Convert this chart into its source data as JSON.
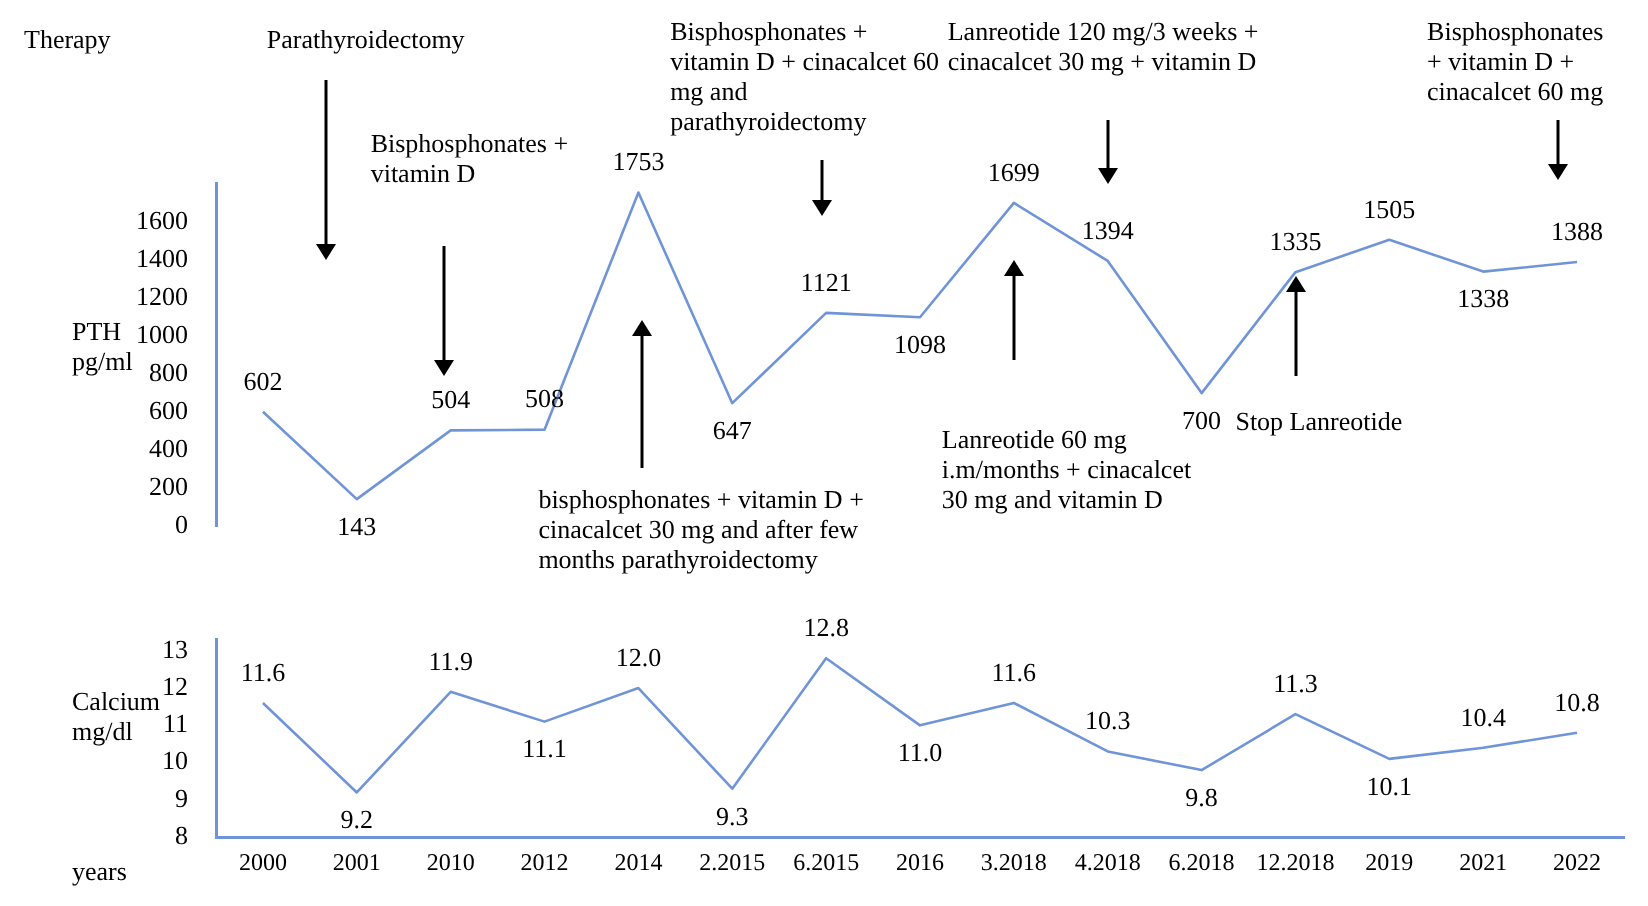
{
  "chart_data": [
    {
      "type": "line",
      "ylabel": "PTH pg/ml",
      "color": "#7094d8",
      "categories": [
        "2000",
        "2001",
        "2010",
        "2012",
        "2014",
        "2.2015",
        "6.2015",
        "2016",
        "3.2018",
        "4.2018",
        "6.2018",
        "12.2018",
        "2019",
        "2021",
        "2022"
      ],
      "values": [
        602,
        143,
        504,
        508,
        1753,
        647,
        1121,
        1098,
        1699,
        1394,
        700,
        1335,
        1505,
        1338,
        1388
      ],
      "ylim": [
        0,
        1800
      ],
      "yticks": [
        0,
        200,
        400,
        600,
        800,
        1000,
        1200,
        1400,
        1600
      ],
      "data_labels": true,
      "tick_labels": "y",
      "annotations": [
        "Therapy",
        "Parathyroidectomy",
        "Bisphosphonates + vitamin D",
        "bisphosphonates + vitamin D + cinacalcet 30 mg and after few months parathyroidectomy",
        "Bisphosphonates + vitamin D + cinacalcet 60 mg and parathyroidectomy",
        "Lanreotide 60 mg i.m/months + cinacalcet 30 mg and vitamin D",
        "Lanreotide 120 mg/3 weeks + cinacalcet 30 mg + vitamin D",
        "Stop Lanreotide",
        "Bisphosphonates + vitamin D + cinacalcet 60 mg"
      ]
    },
    {
      "type": "line",
      "ylabel": "Calcium mg/dl",
      "xlabel": "years",
      "color": "#7094d8",
      "categories": [
        "2000",
        "2001",
        "2010",
        "2012",
        "2014",
        "2.2015",
        "6.2015",
        "2016",
        "3.2018",
        "4.2018",
        "6.2018",
        "12.2018",
        "2019",
        "2021",
        "2022"
      ],
      "values": [
        11.6,
        9.2,
        11.9,
        11.1,
        12.0,
        9.3,
        12.8,
        11.0,
        11.6,
        10.3,
        9.8,
        11.3,
        10.1,
        10.4,
        10.8
      ],
      "value_labels": [
        "11.6",
        "9.2",
        "11.9",
        "11.1",
        "12.0",
        "9.3",
        "12.8",
        "11.0",
        "11.6",
        "10.3",
        "9.8",
        "11.3",
        "10.1",
        "10.4",
        "10.8"
      ],
      "ylim": [
        8,
        13.3
      ],
      "yticks": [
        8,
        9,
        10,
        11,
        12,
        13
      ]
    }
  ]
}
